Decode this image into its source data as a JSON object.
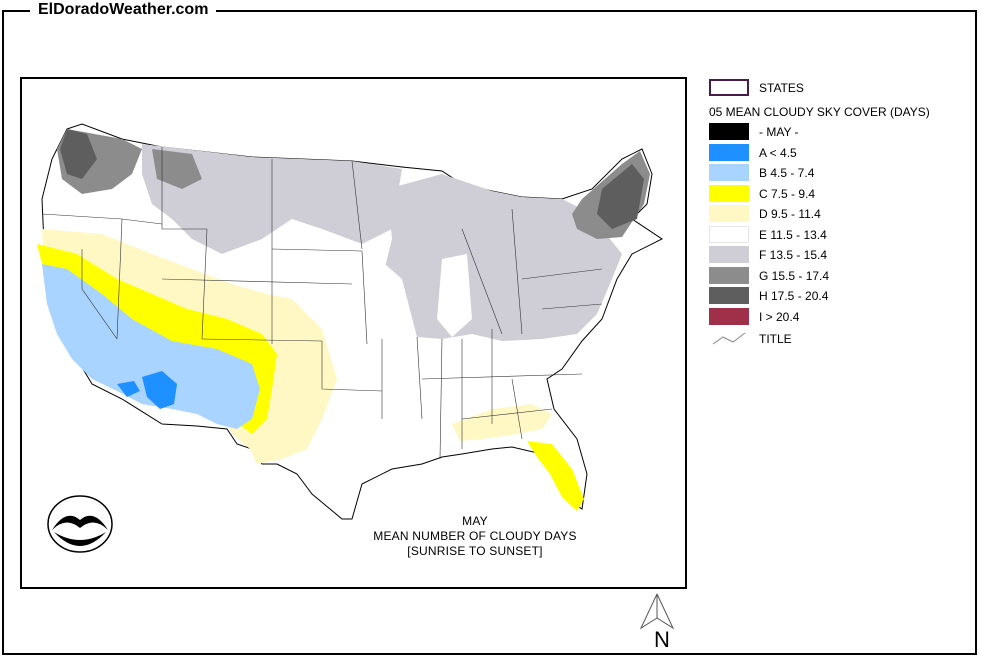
{
  "site_title": "ElDoradoWeather.com",
  "legend": {
    "states_label": "STATES",
    "heading": "05 MEAN CLOUDY SKY COVER (DAYS)",
    "items": [
      {
        "label": "- MAY -",
        "color": "#000000"
      },
      {
        "label": "A < 4.5",
        "color": "#1e90ff"
      },
      {
        "label": "B 4.5 - 7.4",
        "color": "#a8d4ff"
      },
      {
        "label": "C 7.5 - 9.4",
        "color": "#ffff00"
      },
      {
        "label": "D 9.5 - 11.4",
        "color": "#fff8c4"
      },
      {
        "label": "E 11.5 - 13.4",
        "color": "#ffffff"
      },
      {
        "label": "F 13.5 - 15.4",
        "color": "#cfcdd6"
      },
      {
        "label": "G 15.5 - 17.4",
        "color": "#8c8c8c"
      },
      {
        "label": "H 17.5 - 20.4",
        "color": "#5e5e5e"
      },
      {
        "label": "I > 20.4",
        "color": "#a0304a"
      }
    ],
    "title_label": "TITLE",
    "states_outline_color": "#4a1a4a"
  },
  "caption": {
    "line1": "MAY",
    "line2": "MEAN NUMBER OF CLOUDY DAYS",
    "line3": "[SUNRISE TO SUNSET]"
  },
  "north_label": "N"
}
